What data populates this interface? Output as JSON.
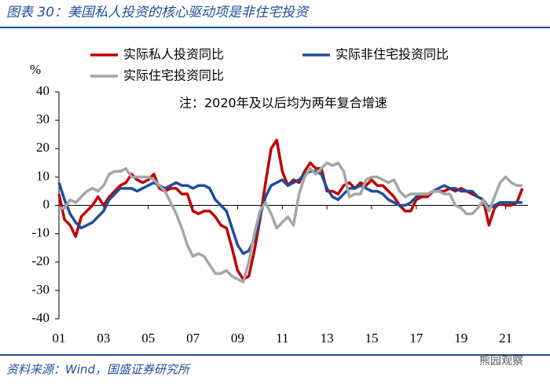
{
  "chart_data": {
    "type": "line",
    "title": "图表 30：美国私人投资的核心驱动项是非住宅投资",
    "y_label": "%",
    "annotation": "注：2020年及以后均为两年复合增速",
    "source": "资料来源：Wind，国盛证券研究所",
    "watermark": "熊园观察",
    "x": [
      2001,
      2001.25,
      2001.5,
      2001.75,
      2002,
      2002.25,
      2002.5,
      2002.75,
      2003,
      2003.25,
      2003.5,
      2003.75,
      2004,
      2004.25,
      2004.5,
      2004.75,
      2005,
      2005.25,
      2005.5,
      2005.75,
      2006,
      2006.25,
      2006.5,
      2006.75,
      2007,
      2007.25,
      2007.5,
      2007.75,
      2008,
      2008.25,
      2008.5,
      2008.75,
      2009,
      2009.25,
      2009.5,
      2009.75,
      2010,
      2010.25,
      2010.5,
      2010.75,
      2011,
      2011.25,
      2011.5,
      2011.75,
      2012,
      2012.25,
      2012.5,
      2012.75,
      2013,
      2013.25,
      2013.5,
      2013.75,
      2014,
      2014.25,
      2014.5,
      2014.75,
      2015,
      2015.25,
      2015.5,
      2015.75,
      2016,
      2016.25,
      2016.5,
      2016.75,
      2017,
      2017.25,
      2017.5,
      2017.75,
      2018,
      2018.25,
      2018.5,
      2018.75,
      2019,
      2019.25,
      2019.5,
      2019.75,
      2020,
      2020.25,
      2020.5,
      2020.75,
      2021,
      2021.25,
      2021.5,
      2021.75
    ],
    "series": [
      {
        "name": "实际私人投资同比",
        "color": "#c00000",
        "values": [
          4,
          -5,
          -7,
          -11,
          -4,
          -2,
          0,
          3,
          0,
          3,
          5,
          7,
          8,
          11,
          9,
          8,
          9,
          11,
          6,
          5,
          6,
          6,
          4,
          4,
          -2,
          -3,
          -2,
          -2,
          -4,
          -7,
          -8,
          -15,
          -23,
          -26,
          -25,
          -16,
          -5,
          8,
          20,
          23,
          12,
          7,
          9,
          8,
          12,
          15,
          13,
          13,
          5,
          5,
          4,
          7,
          8,
          6,
          8,
          7,
          9,
          7,
          7,
          5,
          3,
          0,
          -2,
          -2,
          2,
          3,
          3,
          5,
          5,
          5,
          6,
          5,
          6,
          5,
          4,
          3,
          2,
          -7,
          -1,
          1,
          0,
          0,
          1,
          6
        ]
      },
      {
        "name": "实际非住宅投资同比",
        "color": "#1f4e9c",
        "values": [
          8,
          2,
          -3,
          -6,
          -8,
          -7,
          -6,
          -4,
          -2,
          2,
          4,
          6,
          6,
          6,
          5,
          6,
          7,
          8,
          7,
          6,
          7,
          8,
          7,
          7,
          6,
          7,
          7,
          6,
          2,
          0,
          -2,
          -8,
          -14,
          -17,
          -16,
          -12,
          -4,
          3,
          7,
          8,
          9,
          7,
          8,
          9,
          11,
          12,
          12,
          11,
          6,
          3,
          2,
          4,
          6,
          6,
          7,
          6,
          5,
          5,
          4,
          2,
          1,
          0,
          0,
          1,
          3,
          4,
          4,
          5,
          6,
          7,
          6,
          6,
          5,
          5,
          5,
          3,
          2,
          -1,
          0,
          1,
          1,
          1,
          1,
          1
        ]
      },
      {
        "name": "实际住宅投资同比",
        "color": "#a6a6a6",
        "values": [
          -1,
          -1,
          2,
          1,
          3,
          5,
          6,
          5,
          7,
          11,
          12,
          12,
          13,
          10,
          10,
          10,
          10,
          9,
          7,
          5,
          1,
          -3,
          -8,
          -14,
          -18,
          -17,
          -18,
          -21,
          -24,
          -24,
          -23,
          -25,
          -26,
          -27,
          -20,
          -10,
          -2,
          1,
          -3,
          -8,
          -6,
          -4,
          -7,
          4,
          10,
          13,
          11,
          13,
          15,
          14,
          15,
          12,
          3,
          4,
          4,
          9,
          10,
          10,
          9,
          8,
          9,
          5,
          3,
          4,
          4,
          4,
          4,
          5,
          5,
          4,
          4,
          0,
          -1,
          -3,
          -3,
          -1,
          2,
          -2,
          3,
          8,
          10,
          8,
          7,
          7
        ]
      }
    ],
    "xlim": [
      2001,
      2022
    ],
    "xticks": [
      {
        "value": 2001,
        "label": "01"
      },
      {
        "value": 2003,
        "label": "03"
      },
      {
        "value": 2005,
        "label": "05"
      },
      {
        "value": 2007,
        "label": "07"
      },
      {
        "value": 2009,
        "label": "09"
      },
      {
        "value": 2011,
        "label": "11"
      },
      {
        "value": 2013,
        "label": "13"
      },
      {
        "value": 2015,
        "label": "15"
      },
      {
        "value": 2017,
        "label": "17"
      },
      {
        "value": 2019,
        "label": "19"
      },
      {
        "value": 2021,
        "label": "21"
      }
    ],
    "ylim": [
      -40,
      40
    ],
    "yticks": [
      40,
      30,
      20,
      10,
      0,
      -10,
      -20,
      -30,
      -40
    ]
  }
}
